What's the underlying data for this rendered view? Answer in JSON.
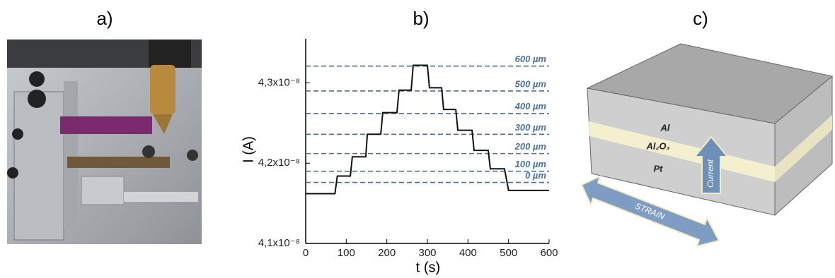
{
  "photo": {
    "label": "a)"
  },
  "chart_data": {
    "type": "line",
    "title": "b)",
    "x_label": "t (s)",
    "y_label": "I (A)",
    "color": "#111111",
    "x": [
      0,
      72,
      78,
      110,
      115,
      148,
      152,
      185,
      190,
      225,
      230,
      260,
      265,
      300,
      305,
      335,
      340,
      370,
      375,
      410,
      415,
      450,
      455,
      490,
      500,
      600
    ],
    "values": [
      4.162e-08,
      4.162e-08,
      4.184e-08,
      4.184e-08,
      4.208e-08,
      4.208e-08,
      4.236e-08,
      4.236e-08,
      4.263e-08,
      4.263e-08,
      4.291e-08,
      4.291e-08,
      4.322e-08,
      4.322e-08,
      4.294e-08,
      4.294e-08,
      4.267e-08,
      4.267e-08,
      4.241e-08,
      4.241e-08,
      4.216e-08,
      4.216e-08,
      4.193e-08,
      4.193e-08,
      4.166e-08,
      4.166e-08
    ],
    "xlim": [
      0,
      600
    ],
    "xticks": [
      0,
      100,
      200,
      300,
      400,
      500,
      600
    ],
    "ylim": [
      4.1e-08,
      4.355e-08
    ],
    "yticks": [
      {
        "value": 4.1e-08,
        "label": "4,1x10⁻⁸"
      },
      {
        "value": 4.2e-08,
        "label": "4,2x10⁻⁸"
      },
      {
        "value": 4.3e-08,
        "label": "4,3x10⁻⁸"
      }
    ],
    "level_color": "#4a72a0",
    "levels": [
      {
        "label": "600 µm",
        "value": 4.321e-08
      },
      {
        "label": "500 µm",
        "value": 4.29e-08
      },
      {
        "label": "400 µm",
        "value": 4.262e-08
      },
      {
        "label": "300 µm",
        "value": 4.236e-08
      },
      {
        "label": "200 µm",
        "value": 4.212e-08
      },
      {
        "label": "100 µm",
        "value": 4.19e-08
      },
      {
        "label": "0 µm",
        "value": 4.176e-08
      }
    ]
  },
  "diagram": {
    "label": "c)",
    "top_layer": "Al",
    "middle_layer": "Al₂O₃",
    "bottom_layer": "Pt",
    "current": "Current",
    "strain": "STRAIN"
  }
}
